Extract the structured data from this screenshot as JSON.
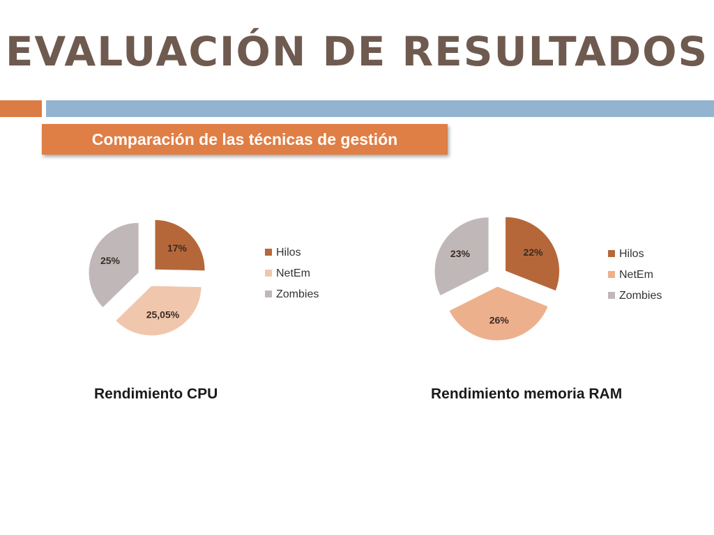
{
  "slide": {
    "title": "EVALUACIÓN DE RESULTADOS",
    "subtitle": "Comparación de las técnicas de gestión"
  },
  "colors": {
    "title": "#6f5a50",
    "accent_orange": "#db7c44",
    "accent_blue": "#93b4d1"
  },
  "chart_data": [
    {
      "type": "pie",
      "title": "Rendimiento CPU",
      "categories": [
        "Hilos",
        "NetEm",
        "Zombies"
      ],
      "values": [
        17,
        25.05,
        25
      ],
      "labels": [
        "17%",
        "25,05%",
        "25%"
      ],
      "colors": [
        "#b6673a",
        "#f0c7ad",
        "#c0b8b8"
      ],
      "exploded": true,
      "legend": "right"
    },
    {
      "type": "pie",
      "title": "Rendimiento memoria RAM",
      "categories": [
        "Hilos",
        "NetEm",
        "Zombies"
      ],
      "values": [
        22,
        26,
        23
      ],
      "labels": [
        "22%",
        "26%",
        "23%"
      ],
      "colors": [
        "#b6673a",
        "#edb08d",
        "#c0b8b8"
      ],
      "exploded": true,
      "legend": "right"
    }
  ]
}
